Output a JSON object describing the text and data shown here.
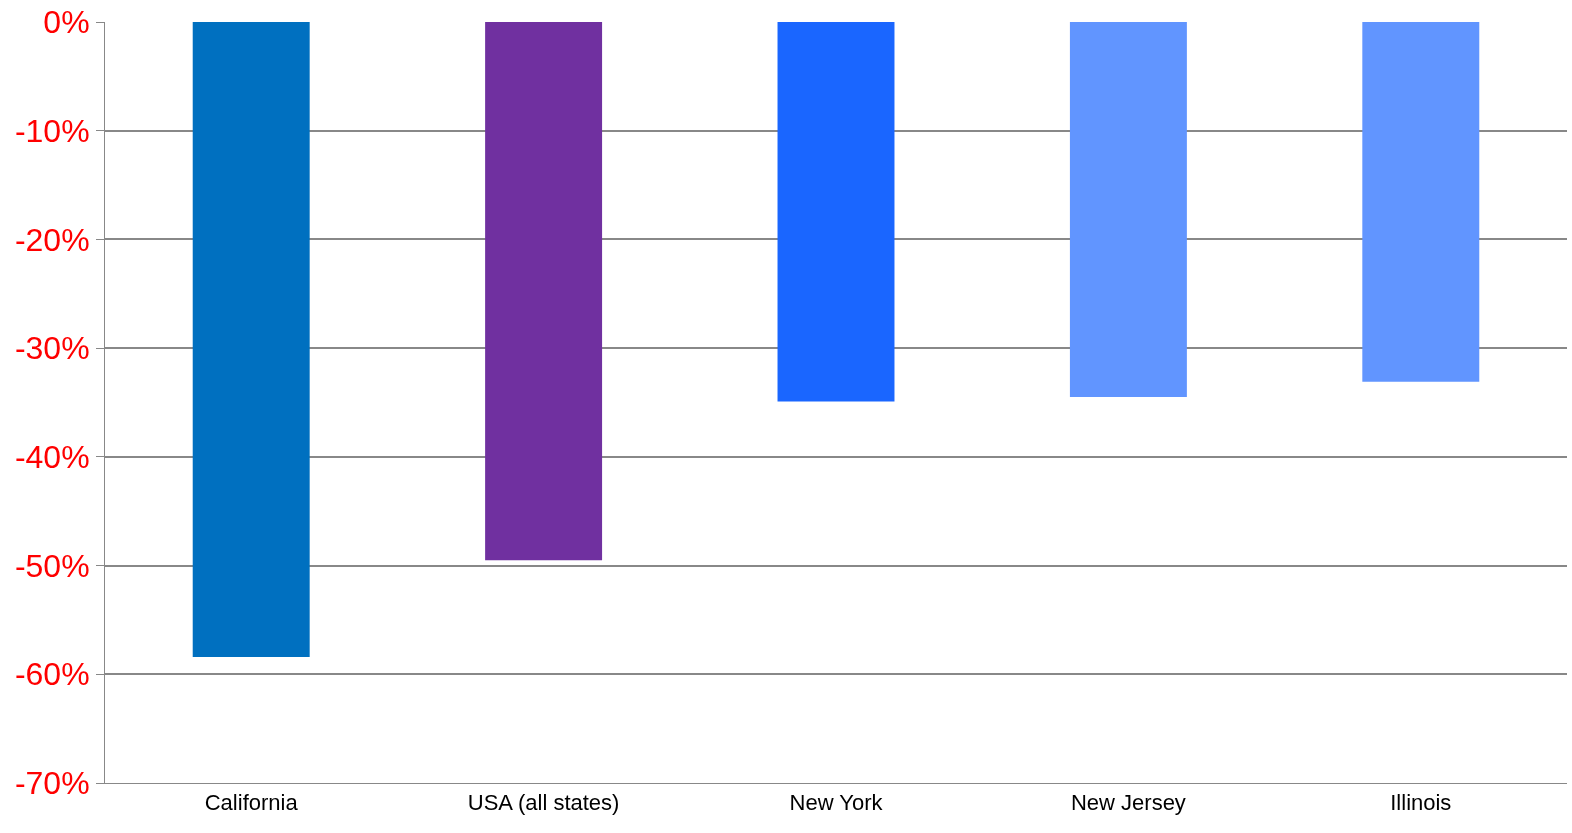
{
  "chart_data": {
    "type": "bar",
    "categories": [
      "California",
      "USA (all states)",
      "New York",
      "New Jersey",
      "Illinois"
    ],
    "values": [
      -58.4,
      -49.5,
      -34.9,
      -34.5,
      -33.1
    ],
    "colors": [
      "#0070c0",
      "#7030a0",
      "#1a66ff",
      "#6195ff",
      "#6195ff"
    ],
    "ylim": [
      -70,
      0
    ],
    "yticks": [
      {
        "value": 0,
        "label": "0%"
      },
      {
        "value": -10,
        "label": "-10%"
      },
      {
        "value": -20,
        "label": "-20%"
      },
      {
        "value": -30,
        "label": "-30%"
      },
      {
        "value": -40,
        "label": "-40%"
      },
      {
        "value": -50,
        "label": "-50%"
      },
      {
        "value": -60,
        "label": "-60%"
      },
      {
        "value": -70,
        "label": "-70%"
      }
    ],
    "grid": "y"
  }
}
